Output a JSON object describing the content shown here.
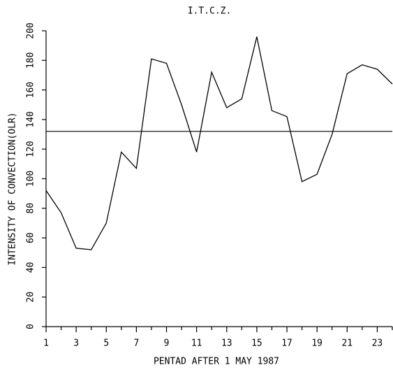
{
  "chart_data": {
    "type": "line",
    "title": "I.T.C.Z.",
    "x_label": "PENTAD AFTER 1 MAY 1987",
    "y_label": "INTENSITY OF CONVECTION(OLR)",
    "x": [
      1,
      2,
      3,
      4,
      5,
      6,
      7,
      8,
      9,
      10,
      11,
      12,
      13,
      14,
      15,
      16,
      17,
      18,
      19,
      20,
      21,
      22,
      23,
      24
    ],
    "series": [
      {
        "color": "#000000",
        "values": [
          92,
          77,
          53,
          52,
          70,
          118,
          107,
          181,
          178,
          150,
          118,
          172,
          148,
          154,
          196,
          146,
          142,
          98,
          103,
          130,
          171,
          177,
          174,
          164
        ]
      }
    ],
    "reference_line": 132,
    "xlim": [
      1,
      24
    ],
    "xticks": [
      1,
      3,
      5,
      7,
      9,
      11,
      13,
      15,
      17,
      19,
      21,
      23
    ],
    "x_minor_ticks": [
      2,
      4,
      6,
      8,
      10,
      12,
      14,
      16,
      18,
      20,
      22,
      24
    ],
    "ylim": [
      0,
      200
    ],
    "yticks": [
      0,
      20,
      40,
      60,
      80,
      100,
      120,
      140,
      160,
      180,
      200
    ]
  }
}
